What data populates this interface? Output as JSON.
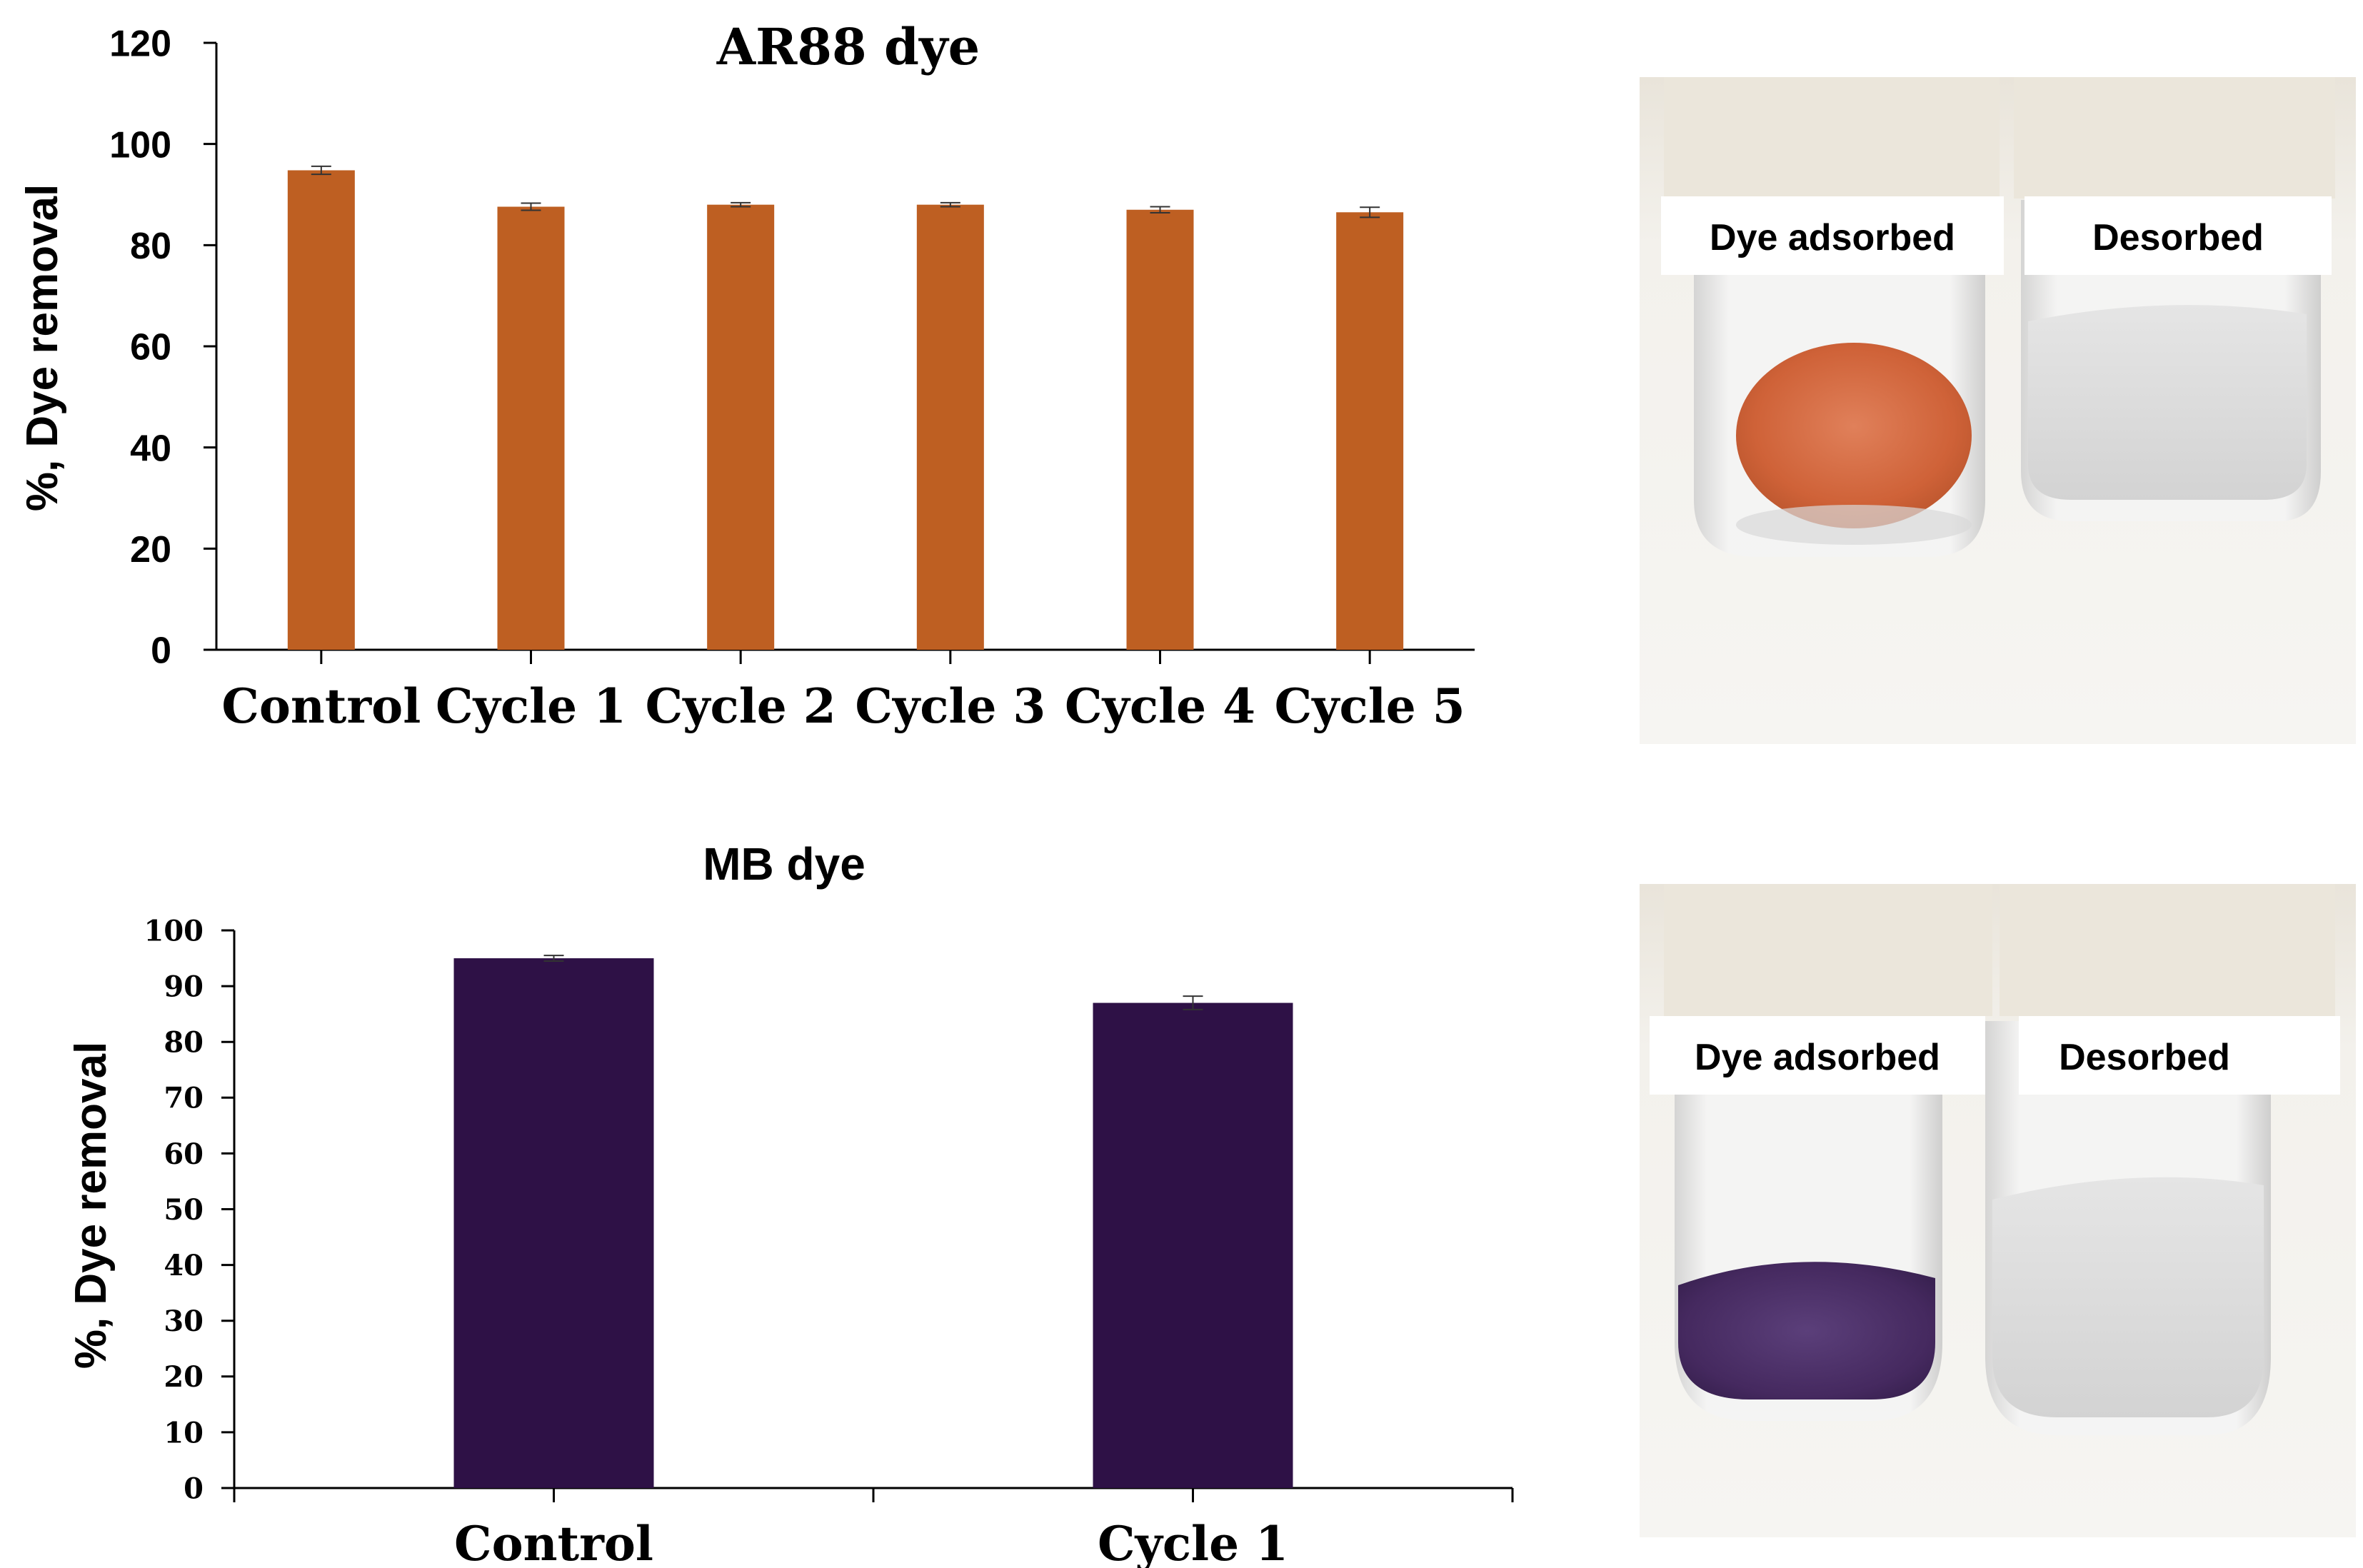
{
  "chart_data": [
    {
      "type": "bar",
      "title": "AR88 dye",
      "ylabel": "%, Dye removal",
      "xlabel": "",
      "categories": [
        "Control",
        "Cycle 1",
        "Cycle 2",
        "Cycle 3",
        "Cycle 4",
        "Cycle 5"
      ],
      "values": [
        94.8,
        87.6,
        88.0,
        88.0,
        87.0,
        86.5
      ],
      "errors": [
        0.8,
        0.7,
        0.4,
        0.4,
        0.6,
        1.0
      ],
      "ylim": [
        0,
        120
      ],
      "yticks": [
        0,
        20,
        40,
        60,
        80,
        100,
        120
      ],
      "color": "#BE5F22",
      "grid": false,
      "legend": "none"
    },
    {
      "type": "bar",
      "title": "MB dye",
      "ylabel": "%, Dye removal",
      "xlabel": "",
      "categories": [
        "Control",
        "Cycle 1"
      ],
      "values": [
        95.0,
        87.0
      ],
      "errors": [
        0.5,
        1.2
      ],
      "ylim": [
        0,
        100
      ],
      "yticks": [
        0,
        10,
        20,
        30,
        40,
        50,
        60,
        70,
        80,
        90,
        100
      ],
      "color": "#2E1146",
      "grid": false,
      "legend": "none"
    }
  ],
  "photos": [
    {
      "left_label": "Dye adsorbed",
      "right_label": "Desorbed",
      "powder_color": "#D46A3E"
    },
    {
      "left_label": "Dye adsorbed",
      "right_label": "Desorbed",
      "powder_color": "#4B2E6B"
    }
  ]
}
